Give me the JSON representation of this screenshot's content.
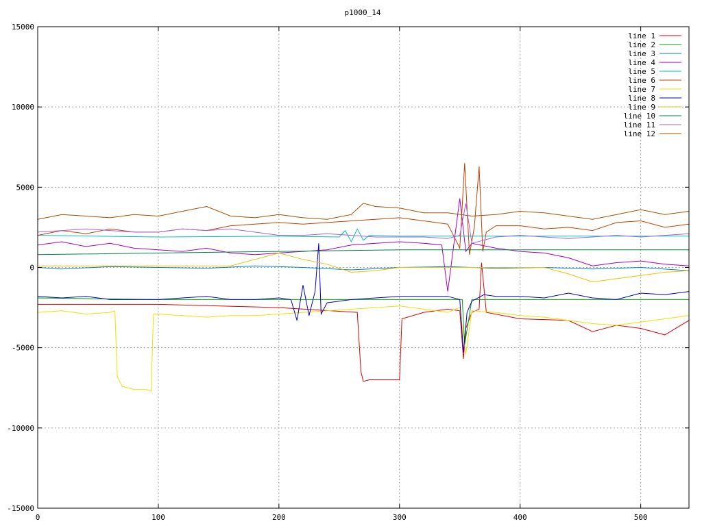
{
  "chart_data": {
    "type": "line",
    "title": "p1000_14",
    "xlabel": "",
    "ylabel": "",
    "xlim": [
      0,
      540
    ],
    "ylim": [
      -15000,
      15000
    ],
    "xticks": [
      0,
      100,
      200,
      300,
      400,
      500
    ],
    "yticks": [
      -15000,
      -10000,
      -5000,
      0,
      5000,
      10000,
      15000
    ],
    "grid": true,
    "legend_position": "top-right",
    "series": [
      {
        "name": "line 1",
        "color": "#e00000",
        "x": [
          0,
          100,
          200,
          265,
          268,
          270,
          275,
          300,
          302,
          320,
          340,
          350,
          353,
          355,
          360,
          366,
          368,
          372,
          400,
          440,
          460,
          480,
          500,
          520,
          540
        ],
        "y": [
          -2300,
          -2300,
          -2500,
          -2800,
          -6500,
          -7100,
          -7000,
          -7000,
          -3200,
          -2800,
          -2600,
          -2700,
          -5700,
          -3800,
          -2800,
          -2600,
          300,
          -2800,
          -3200,
          -3300,
          -4000,
          -3600,
          -3800,
          -4200,
          -3300
        ]
      },
      {
        "name": "line 2",
        "color": "#00a000",
        "x": [
          0,
          100,
          200,
          300,
          352,
          354,
          360,
          400,
          450,
          500,
          540
        ],
        "y": [
          -1900,
          -2000,
          -2000,
          -2000,
          -2000,
          -4800,
          -2000,
          -2000,
          -2000,
          -2000,
          -2000
        ]
      },
      {
        "name": "line 3",
        "color": "#0080c0",
        "x": [
          0,
          20,
          60,
          100,
          140,
          180,
          220,
          260,
          300,
          340,
          380,
          420,
          460,
          500,
          540
        ],
        "y": [
          0,
          -100,
          50,
          0,
          -50,
          100,
          0,
          -150,
          0,
          50,
          -50,
          0,
          -100,
          0,
          -200
        ]
      },
      {
        "name": "line 4",
        "color": "#a000c0",
        "x": [
          0,
          20,
          40,
          60,
          80,
          100,
          120,
          140,
          160,
          180,
          200,
          220,
          240,
          260,
          280,
          300,
          320,
          335,
          340,
          350,
          355,
          360,
          380,
          400,
          420,
          440,
          460,
          480,
          500,
          520,
          540
        ],
        "y": [
          1400,
          1600,
          1300,
          1500,
          1200,
          1100,
          1000,
          1200,
          900,
          800,
          900,
          1000,
          1100,
          1400,
          1500,
          1600,
          1500,
          1400,
          -1500,
          4300,
          1000,
          1500,
          1200,
          1000,
          900,
          600,
          100,
          300,
          400,
          200,
          100
        ]
      },
      {
        "name": "line 5",
        "color": "#00c0c0",
        "x": [
          0,
          100,
          200,
          250,
          255,
          260,
          265,
          270,
          275,
          300,
          400,
          500,
          540
        ],
        "y": [
          2000,
          1900,
          1950,
          1900,
          2300,
          1600,
          2400,
          1700,
          2000,
          1950,
          1950,
          1950,
          1950
        ]
      },
      {
        "name": "line 6",
        "color": "#c04000",
        "x": [
          0,
          20,
          40,
          60,
          80,
          100,
          120,
          140,
          160,
          180,
          200,
          220,
          240,
          260,
          280,
          300,
          320,
          340,
          350,
          354,
          358,
          362,
          366,
          369,
          372,
          380,
          400,
          420,
          440,
          460,
          480,
          500,
          520,
          540
        ],
        "y": [
          2000,
          2300,
          2100,
          2400,
          2200,
          2200,
          2400,
          2300,
          2600,
          2700,
          2800,
          2700,
          2800,
          2900,
          3000,
          3100,
          2900,
          2700,
          1200,
          6500,
          800,
          2500,
          6300,
          1000,
          2200,
          2600,
          2600,
          2400,
          2500,
          2300,
          2800,
          2900,
          2500,
          2700
        ]
      },
      {
        "name": "line 7",
        "color": "#f0e000",
        "x": [
          0,
          20,
          40,
          60,
          64,
          66,
          70,
          80,
          90,
          94,
          96,
          100,
          120,
          140,
          160,
          180,
          200,
          220,
          240,
          260,
          280,
          300,
          320,
          340,
          350,
          355,
          360,
          380,
          400,
          420,
          440,
          460,
          480,
          500,
          520,
          540
        ],
        "y": [
          -2800,
          -2700,
          -2900,
          -2800,
          -2700,
          -6800,
          -7400,
          -7600,
          -7600,
          -7700,
          -2900,
          -2900,
          -3000,
          -3100,
          -3000,
          -3000,
          -2900,
          -2800,
          -2700,
          -2600,
          -2500,
          -2400,
          -2600,
          -2800,
          -2500,
          -5400,
          -2700,
          -2800,
          -3000,
          -3100,
          -3300,
          -3500,
          -3600,
          -3400,
          -3200,
          -3000
        ]
      },
      {
        "name": "line 8",
        "color": "#0000c0",
        "x": [
          0,
          20,
          40,
          60,
          80,
          100,
          120,
          140,
          160,
          180,
          200,
          210,
          215,
          220,
          225,
          230,
          233,
          235,
          240,
          260,
          280,
          300,
          320,
          340,
          350,
          353,
          356,
          360,
          370,
          380,
          400,
          420,
          440,
          460,
          480,
          500,
          520,
          540
        ],
        "y": [
          -1800,
          -1900,
          -1800,
          -2000,
          -2000,
          -2000,
          -1900,
          -1800,
          -2000,
          -2000,
          -1900,
          -2000,
          -3300,
          -1100,
          -3000,
          -1500,
          1500,
          -2900,
          -2200,
          -2000,
          -1900,
          -1800,
          -1800,
          -1800,
          -2000,
          -5300,
          -2800,
          -2100,
          -1700,
          -1800,
          -1800,
          -1900,
          -1600,
          -1900,
          -2000,
          -1600,
          -1700,
          -1500
        ]
      },
      {
        "name": "line 9",
        "color": "#f0c000",
        "x": [
          0,
          20,
          40,
          60,
          80,
          100,
          120,
          140,
          160,
          180,
          200,
          220,
          240,
          260,
          280,
          300,
          320,
          340,
          360,
          380,
          400,
          420,
          440,
          460,
          480,
          500,
          520,
          540
        ],
        "y": [
          100,
          100,
          100,
          100,
          100,
          100,
          100,
          100,
          100,
          500,
          900,
          500,
          200,
          -300,
          -200,
          0,
          0,
          0,
          0,
          0,
          0,
          0,
          -400,
          -900,
          -700,
          -500,
          -300,
          -200
        ]
      },
      {
        "name": "line 10",
        "color": "#008040",
        "x": [
          0,
          100,
          200,
          300,
          400,
          500,
          540
        ],
        "y": [
          800,
          900,
          1000,
          1100,
          1100,
          1100,
          1100
        ]
      },
      {
        "name": "line 11",
        "color": "#a060e0",
        "x": [
          0,
          20,
          40,
          60,
          80,
          100,
          120,
          140,
          160,
          180,
          200,
          220,
          240,
          260,
          280,
          300,
          320,
          340,
          350,
          355,
          360,
          380,
          400,
          420,
          440,
          460,
          480,
          500,
          520,
          540
        ],
        "y": [
          2200,
          2300,
          2400,
          2300,
          2200,
          2200,
          2400,
          2300,
          2400,
          2200,
          2000,
          2000,
          2100,
          2000,
          1900,
          1900,
          1900,
          1800,
          2000,
          4000,
          1500,
          1900,
          2000,
          1900,
          1800,
          1900,
          2000,
          1900,
          2000,
          2100
        ]
      },
      {
        "name": "line 12",
        "color": "#a05000",
        "x": [
          0,
          20,
          40,
          60,
          80,
          100,
          120,
          140,
          160,
          180,
          200,
          220,
          240,
          260,
          270,
          280,
          300,
          320,
          340,
          360,
          380,
          400,
          420,
          440,
          460,
          480,
          500,
          520,
          540
        ],
        "y": [
          3000,
          3300,
          3200,
          3100,
          3300,
          3200,
          3500,
          3800,
          3200,
          3100,
          3300,
          3100,
          3000,
          3300,
          4000,
          3800,
          3700,
          3400,
          3400,
          3200,
          3300,
          3500,
          3400,
          3200,
          3000,
          3300,
          3600,
          3300,
          3500
        ]
      }
    ]
  }
}
